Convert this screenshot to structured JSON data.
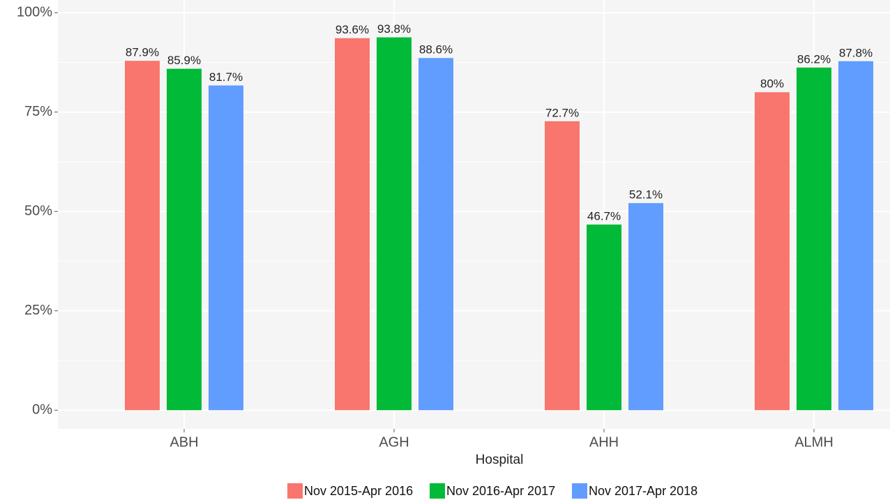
{
  "chart_data": {
    "type": "bar",
    "x_label": "Hospital",
    "categories": [
      "ABH",
      "AGH",
      "AHH",
      "ALMH"
    ],
    "series": [
      {
        "name": "Nov 2015-Apr 2016",
        "color": "#F8766D",
        "values": [
          87.9,
          93.6,
          72.7,
          80
        ],
        "value_labels": [
          "87.9%",
          "93.6%",
          "72.7%",
          "80%"
        ]
      },
      {
        "name": "Nov 2016-Apr 2017",
        "color": "#00BA38",
        "values": [
          85.9,
          93.8,
          46.7,
          86.2
        ],
        "value_labels": [
          "85.9%",
          "93.8%",
          "46.7%",
          "86.2%"
        ]
      },
      {
        "name": "Nov 2017-Apr 2018",
        "color": "#619CFF",
        "values": [
          81.7,
          88.6,
          52.1,
          87.8
        ],
        "value_labels": [
          "81.7%",
          "88.6%",
          "52.1%",
          "87.8%"
        ]
      }
    ],
    "ylim": [
      -4.7,
      103.2
    ],
    "yticks": [
      {
        "value": 0,
        "label": "0%"
      },
      {
        "value": 25,
        "label": "25%"
      },
      {
        "value": 50,
        "label": "50%"
      },
      {
        "value": 75,
        "label": "75%"
      },
      {
        "value": 100,
        "label": "100%"
      }
    ],
    "grid": true,
    "legend": "bottom"
  }
}
